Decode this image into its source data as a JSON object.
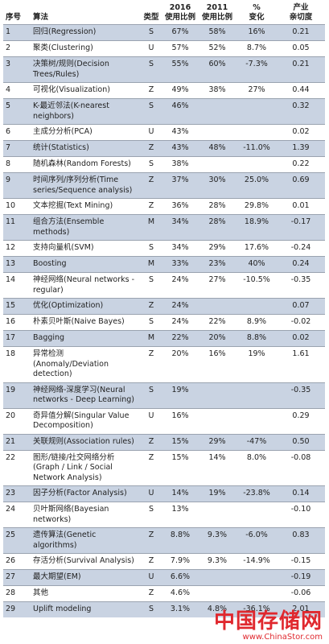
{
  "table": {
    "header": [
      [
        "序号"
      ],
      [
        "算法"
      ],
      [
        "类型"
      ],
      [
        "2016",
        "使用比例"
      ],
      [
        "2011",
        "使用比例"
      ],
      [
        "%",
        "变化"
      ],
      [
        "产业",
        "亲切度"
      ]
    ],
    "rows": [
      [
        "1",
        "回归(Regression)",
        "S",
        "67%",
        "58%",
        "16%",
        "0.21"
      ],
      [
        "2",
        "聚类(Clustering)",
        "U",
        "57%",
        "52%",
        "8.7%",
        "0.05"
      ],
      [
        "3",
        "决策树/规则(Decision Trees/Rules)",
        "S",
        "55%",
        "60%",
        "-7.3%",
        "0.21"
      ],
      [
        "4",
        "可视化(Visualization)",
        "Z",
        "49%",
        "38%",
        "27%",
        "0.44"
      ],
      [
        "5",
        "K-最近邻法(K-nearest neighbors)",
        "S",
        "46%",
        null,
        null,
        "0.32"
      ],
      [
        "6",
        "主成分分析(PCA)",
        "U",
        "43%",
        null,
        null,
        "0.02"
      ],
      [
        "7",
        "统计(Statistics)",
        "Z",
        "43%",
        "48%",
        "-11.0%",
        "1.39"
      ],
      [
        "8",
        "随机森林(Random Forests)",
        "S",
        "38%",
        null,
        null,
        "0.22"
      ],
      [
        "9",
        "时间序列/序列分析(Time series/Sequence analysis)",
        "Z",
        "37%",
        "30%",
        "25.0%",
        "0.69"
      ],
      [
        "10",
        "文本挖掘(Text Mining)",
        "Z",
        "36%",
        "28%",
        "29.8%",
        "0.01"
      ],
      [
        "11",
        "组合方法(Ensemble methods)",
        "M",
        "34%",
        "28%",
        "18.9%",
        "-0.17"
      ],
      [
        "12",
        "支持向量机(SVM)",
        "S",
        "34%",
        "29%",
        "17.6%",
        "-0.24"
      ],
      [
        "13",
        "Boosting",
        "M",
        "33%",
        "23%",
        "40%",
        "0.24"
      ],
      [
        "14",
        "神经网络(Neural networks - regular)",
        "S",
        "24%",
        "27%",
        "-10.5%",
        "-0.35"
      ],
      [
        "15",
        "优化(Optimization)",
        "Z",
        "24%",
        null,
        null,
        "0.07"
      ],
      [
        "16",
        "朴素贝叶斯(Naive Bayes)",
        "S",
        "24%",
        "22%",
        "8.9%",
        "-0.02"
      ],
      [
        "17",
        "Bagging",
        "M",
        "22%",
        "20%",
        "8.8%",
        "0.02"
      ],
      [
        "18",
        "异常检测(Anomaly/Deviation detection)",
        "Z",
        "20%",
        "16%",
        "19%",
        "1.61"
      ],
      [
        "19",
        "神经网络-深度学习(Neural networks - Deep Learning)",
        "S",
        "19%",
        null,
        null,
        "-0.35"
      ],
      [
        "20",
        "奇异值分解(Singular Value Decomposition)",
        "U",
        "16%",
        null,
        null,
        "0.29"
      ],
      [
        "21",
        "关联规则(Association rules)",
        "Z",
        "15%",
        "29%",
        "-47%",
        "0.50"
      ],
      [
        "22",
        "图形/链接/社交网络分析(Graph / Link / Social Network Analysis)",
        "Z",
        "15%",
        "14%",
        "8.0%",
        "-0.08"
      ],
      [
        "23",
        "因子分析(Factor Analysis)",
        "U",
        "14%",
        "19%",
        "-23.8%",
        "0.14"
      ],
      [
        "24",
        "贝叶斯网络(Bayesian networks)",
        "S",
        "13%",
        null,
        null,
        "-0.10"
      ],
      [
        "25",
        "遗传算法(Genetic algorithms)",
        "Z",
        "8.8%",
        "9.3%",
        "-6.0%",
        "0.83"
      ],
      [
        "26",
        "存活分析(Survival Analysis)",
        "Z",
        "7.9%",
        "9.3%",
        "-14.9%",
        "-0.15"
      ],
      [
        "27",
        "最大期望(EM)",
        "U",
        "6.6%",
        null,
        null,
        "-0.19"
      ],
      [
        "28",
        "其他",
        "Z",
        "4.6%",
        null,
        null,
        "-0.06"
      ],
      [
        "29",
        "Uplift modeling",
        "S",
        "3.1%",
        "4.8%",
        "-36.1%",
        "2.01"
      ]
    ]
  },
  "watermark": {
    "title": "中国存储网",
    "url": "www.ChinaStor.com"
  }
}
